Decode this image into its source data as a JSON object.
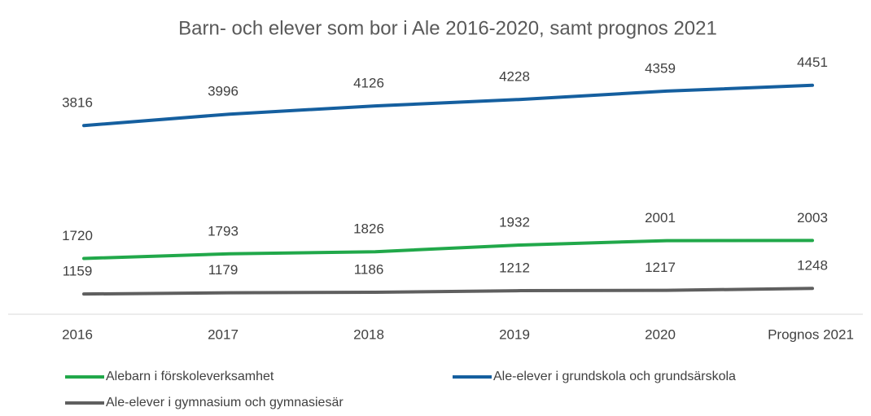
{
  "chart_data": {
    "type": "line",
    "title": "Barn- och elever som bor i Ale 2016-2020, samt prognos 2021",
    "categories": [
      "2016",
      "2017",
      "2018",
      "2019",
      "2020",
      "Prognos 2021"
    ],
    "series": [
      {
        "name": "Alebarn i förskoleverksamhet",
        "color": "#21a84a",
        "values": [
          1720,
          1793,
          1826,
          1932,
          2001,
          2003
        ]
      },
      {
        "name": "Ale-elever i grundskola och grundsärskola",
        "color": "#155f9f",
        "values": [
          3816,
          3996,
          4126,
          4228,
          4359,
          4451
        ]
      },
      {
        "name": "Ale-elever i gymnasium och gymnasiesär",
        "color": "#5f5f5f",
        "values": [
          1159,
          1179,
          1186,
          1212,
          1217,
          1248
        ]
      }
    ],
    "ylim": [
      840,
      5000
    ],
    "legend": "bottom"
  }
}
